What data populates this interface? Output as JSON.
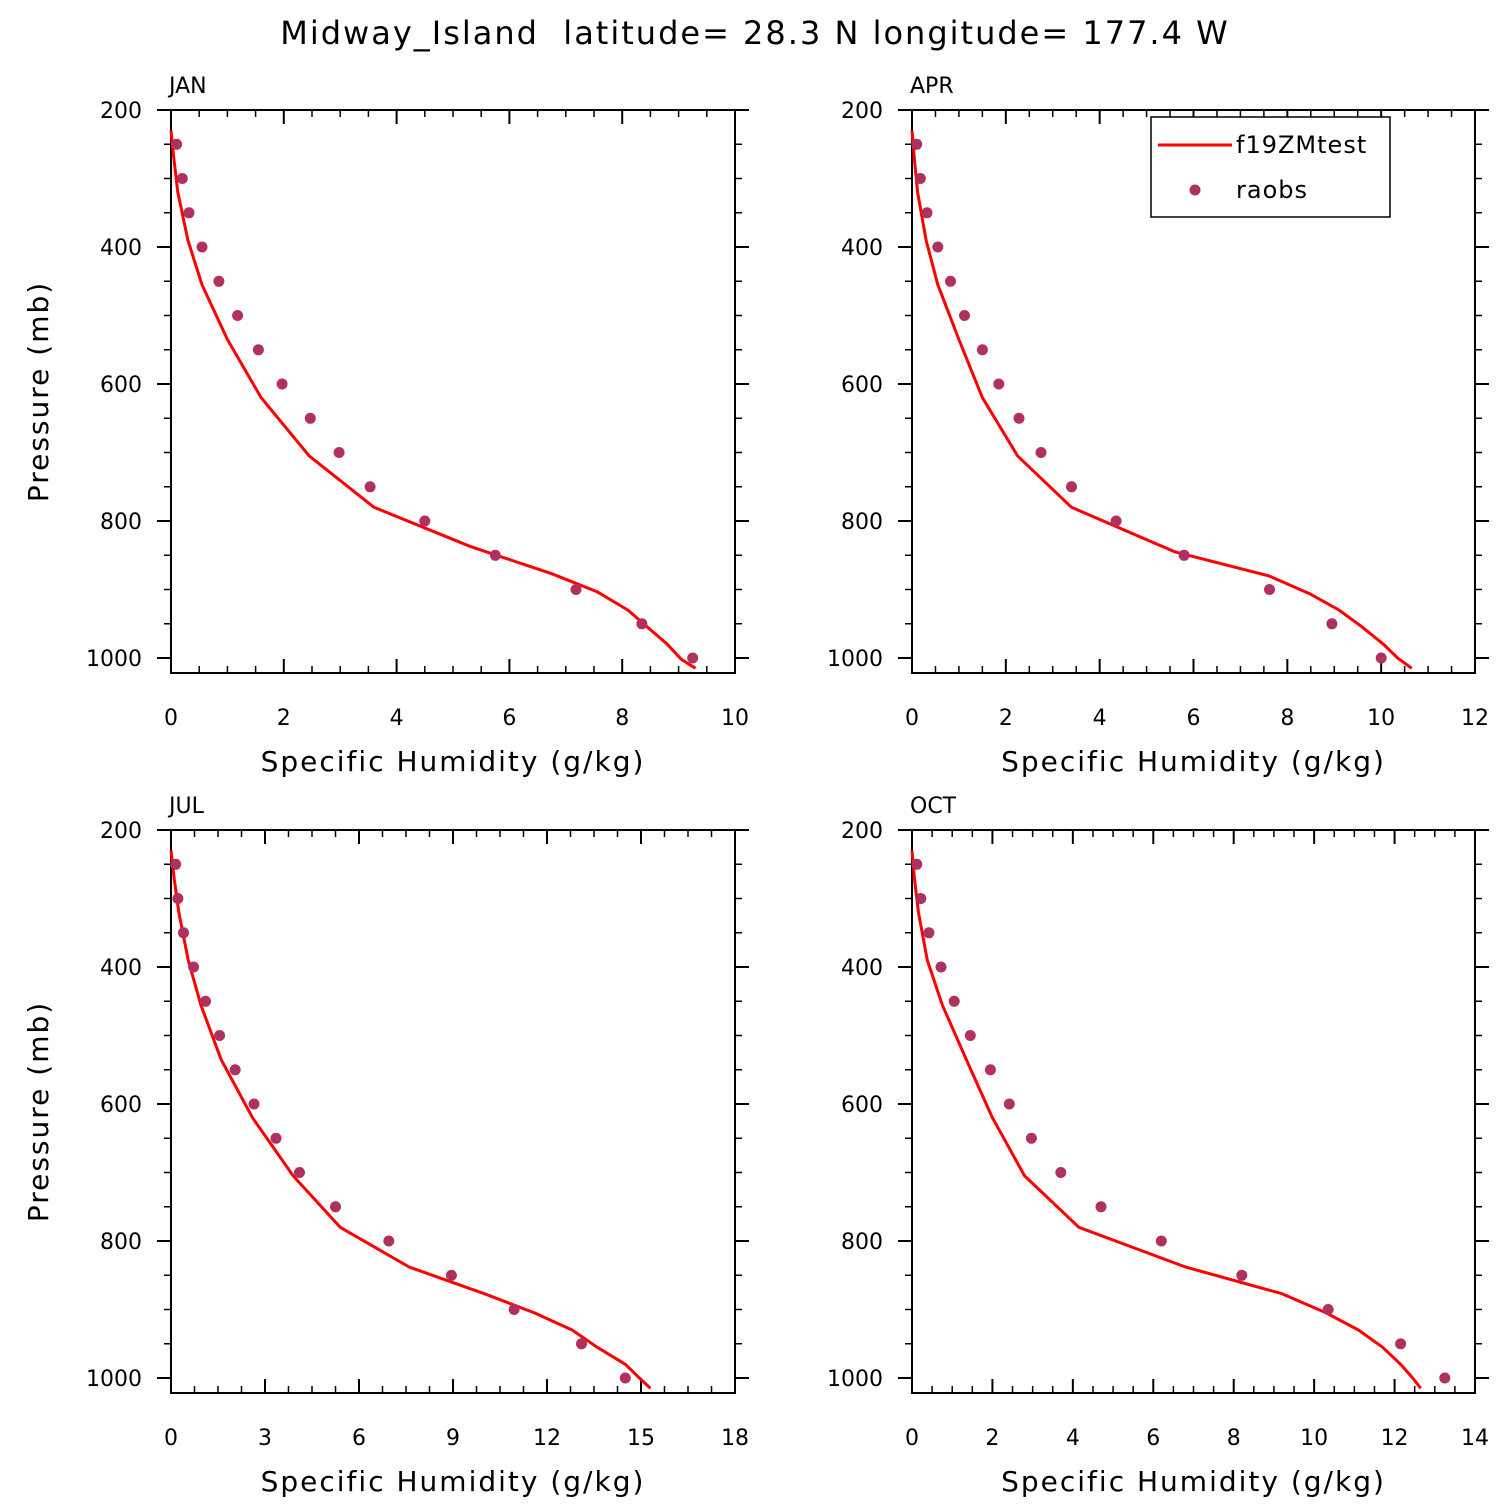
{
  "title": "Midway_Island  latitude= 28.3 N longitude= 177.4 W",
  "legend": {
    "model_label": "f19ZMtest",
    "obs_label": "raobs"
  },
  "colors": {
    "model": "#ff0000",
    "obs": "#b03060",
    "axes": "#000000"
  },
  "chart_data": [
    {
      "type": "line",
      "panel_label": "JAN",
      "xlabel": "Specific Humidity (g/kg)",
      "ylabel": "Pressure (mb)",
      "xlim": [
        0,
        10
      ],
      "xticks": [
        0,
        2,
        4,
        6,
        8,
        10
      ],
      "ylim": [
        1025,
        200
      ],
      "yticks": [
        200,
        400,
        600,
        800,
        1000
      ],
      "y_inverted": true,
      "series": [
        {
          "name": "f19ZMtest",
          "style": "line",
          "x": [
            0,
            0.05,
            0.12,
            0.3,
            0.55,
            1.0,
            1.6,
            2.45,
            3.6,
            5.3,
            6.75,
            7.55,
            8.1,
            8.45,
            8.8,
            9.05,
            9.3
          ],
          "y": [
            230,
            270,
            320,
            390,
            455,
            535,
            620,
            705,
            780,
            837,
            877,
            903,
            930,
            955,
            980,
            1002,
            1015
          ]
        },
        {
          "name": "raobs",
          "style": "markers",
          "x": [
            0.1,
            0.2,
            0.32,
            0.55,
            0.85,
            1.18,
            1.55,
            1.97,
            2.47,
            2.98,
            3.53,
            4.5,
            5.75,
            7.18,
            8.35,
            9.25
          ],
          "y": [
            250,
            300,
            350,
            400,
            450,
            500,
            550,
            600,
            650,
            700,
            750,
            800,
            850,
            900,
            950,
            1000
          ]
        }
      ]
    },
    {
      "type": "line",
      "panel_label": "APR",
      "xlabel": "Specific Humidity (g/kg)",
      "ylabel": "",
      "xlim": [
        0,
        12
      ],
      "xticks": [
        0,
        2,
        4,
        6,
        8,
        10,
        12
      ],
      "ylim": [
        1025,
        200
      ],
      "yticks": [
        200,
        400,
        600,
        800,
        1000
      ],
      "y_inverted": true,
      "series": [
        {
          "name": "f19ZMtest",
          "style": "line",
          "x": [
            0,
            0.05,
            0.12,
            0.3,
            0.55,
            1.0,
            1.5,
            2.25,
            3.4,
            5.6,
            7.6,
            8.5,
            9.1,
            9.6,
            10.05,
            10.35,
            10.65
          ],
          "y": [
            230,
            270,
            320,
            390,
            455,
            535,
            620,
            705,
            780,
            845,
            880,
            907,
            930,
            955,
            980,
            1000,
            1015
          ]
        },
        {
          "name": "raobs",
          "style": "markers",
          "x": [
            0.1,
            0.18,
            0.32,
            0.55,
            0.82,
            1.12,
            1.5,
            1.85,
            2.28,
            2.75,
            3.4,
            4.35,
            5.8,
            7.62,
            8.95,
            10.0
          ],
          "y": [
            250,
            300,
            350,
            400,
            450,
            500,
            550,
            600,
            650,
            700,
            750,
            800,
            850,
            900,
            950,
            1000
          ]
        }
      ]
    },
    {
      "type": "line",
      "panel_label": "JUL",
      "xlabel": "Specific Humidity (g/kg)",
      "ylabel": "Pressure (mb)",
      "xlim": [
        0,
        18
      ],
      "xticks": [
        0,
        3,
        6,
        9,
        12,
        15,
        18
      ],
      "ylim": [
        1025,
        200
      ],
      "yticks": [
        200,
        400,
        600,
        800,
        1000
      ],
      "y_inverted": true,
      "series": [
        {
          "name": "f19ZMtest",
          "style": "line",
          "x": [
            0,
            0.1,
            0.25,
            0.55,
            0.95,
            1.6,
            2.6,
            3.9,
            5.4,
            7.6,
            10.0,
            11.6,
            12.8,
            13.6,
            14.5,
            14.95,
            15.3
          ],
          "y": [
            230,
            270,
            320,
            390,
            455,
            535,
            620,
            705,
            780,
            838,
            877,
            905,
            930,
            955,
            980,
            1000,
            1015
          ]
        },
        {
          "name": "raobs",
          "style": "markers",
          "x": [
            0.15,
            0.22,
            0.4,
            0.72,
            1.1,
            1.55,
            2.05,
            2.65,
            3.35,
            4.1,
            5.25,
            6.95,
            8.95,
            10.95,
            13.1,
            14.5
          ],
          "y": [
            250,
            300,
            350,
            400,
            450,
            500,
            550,
            600,
            650,
            700,
            750,
            800,
            850,
            900,
            950,
            1000
          ]
        }
      ]
    },
    {
      "type": "line",
      "panel_label": "OCT",
      "xlabel": "Specific Humidity (g/kg)",
      "ylabel": "",
      "xlim": [
        0,
        14
      ],
      "xticks": [
        0,
        2,
        4,
        6,
        8,
        10,
        12,
        14
      ],
      "ylim": [
        1025,
        200
      ],
      "yticks": [
        200,
        400,
        600,
        800,
        1000
      ],
      "y_inverted": true,
      "series": [
        {
          "name": "f19ZMtest",
          "style": "line",
          "x": [
            0,
            0.06,
            0.16,
            0.38,
            0.75,
            1.35,
            2.0,
            2.8,
            4.15,
            6.8,
            9.2,
            10.3,
            11.1,
            11.7,
            12.15,
            12.45,
            12.65
          ],
          "y": [
            230,
            270,
            320,
            390,
            455,
            535,
            620,
            705,
            780,
            838,
            877,
            905,
            930,
            955,
            980,
            1000,
            1015
          ]
        },
        {
          "name": "raobs",
          "style": "markers",
          "x": [
            0.12,
            0.22,
            0.42,
            0.72,
            1.05,
            1.45,
            1.95,
            2.42,
            2.97,
            3.7,
            4.7,
            6.2,
            8.2,
            10.35,
            12.15,
            13.25
          ],
          "y": [
            250,
            300,
            350,
            400,
            450,
            500,
            550,
            600,
            650,
            700,
            750,
            800,
            850,
            900,
            950,
            1000
          ]
        }
      ]
    }
  ]
}
